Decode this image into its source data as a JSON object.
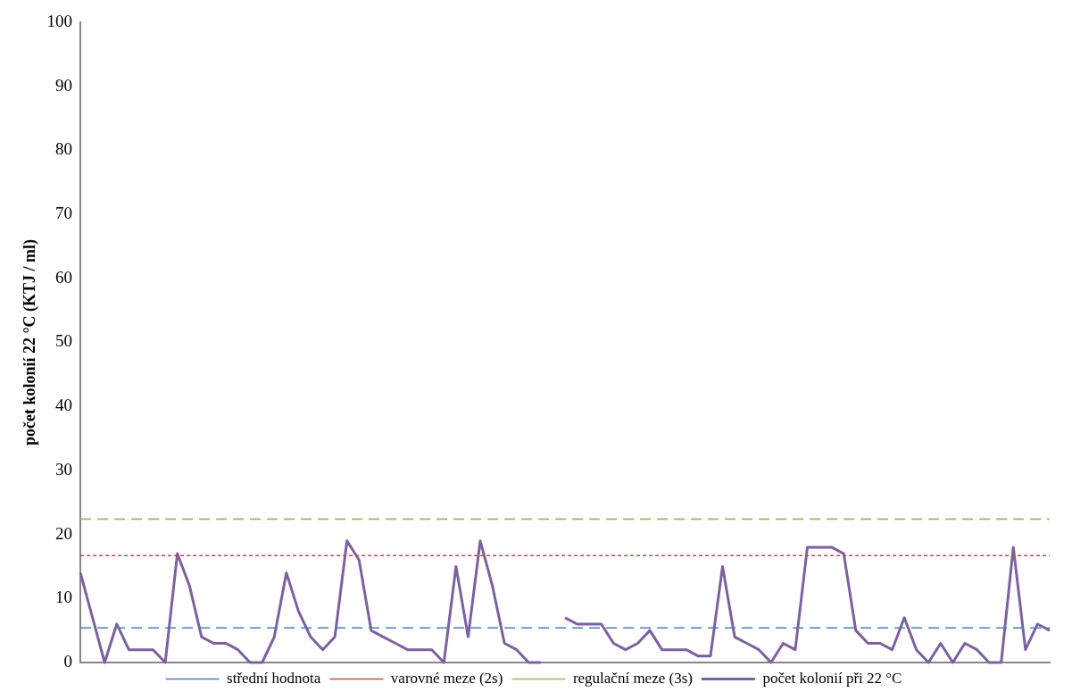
{
  "chart_data": {
    "type": "line",
    "ylabel": "počet kolonií 22 °C (KTJ / ml)",
    "categories": [
      null,
      null,
      null,
      null,
      null,
      null,
      null,
      null,
      null,
      null,
      null,
      null,
      null,
      null,
      null,
      null,
      null,
      null,
      null,
      null,
      null,
      null,
      null,
      null,
      null,
      null,
      null,
      null,
      null,
      null,
      null,
      null,
      null,
      null,
      null,
      null,
      null,
      null,
      null,
      null,
      null,
      null,
      null,
      null,
      null,
      null,
      null,
      null,
      null,
      null,
      null,
      null,
      null,
      null,
      null,
      null,
      null,
      null,
      null,
      null,
      null,
      null,
      null,
      null,
      null,
      null,
      null,
      null,
      null,
      null,
      null,
      null,
      null,
      null,
      null,
      null,
      null,
      null,
      null,
      null,
      null
    ],
    "ylim": [
      0,
      100
    ],
    "yticks": [
      0,
      10,
      20,
      30,
      40,
      50,
      60,
      70,
      80,
      90,
      100
    ],
    "grid": false,
    "legend": "bottom",
    "marker": "none",
    "series": [
      {
        "name": "střední hodnota",
        "color": "#4a7ebb",
        "line_style": "dashed",
        "values": [
          5.4,
          5.4,
          5.4,
          5.4,
          5.4,
          5.4,
          5.4,
          5.4,
          5.4,
          5.4,
          5.4,
          5.4,
          5.4,
          5.4,
          5.4,
          5.4,
          5.4,
          5.4,
          5.4,
          5.4,
          5.4,
          5.4,
          5.4,
          5.4,
          5.4,
          5.4,
          5.4,
          5.4,
          5.4,
          5.4,
          5.4,
          5.4,
          5.4,
          5.4,
          5.4,
          5.4,
          5.4,
          5.4,
          5.4,
          5.4,
          5.4,
          5.4,
          5.4,
          5.4,
          5.4,
          5.4,
          5.4,
          5.4,
          5.4,
          5.4,
          5.4,
          5.4,
          5.4,
          5.4,
          5.4,
          5.4,
          5.4,
          5.4,
          5.4,
          5.4,
          5.4,
          5.4,
          5.4,
          5.4,
          5.4,
          5.4,
          5.4,
          5.4,
          5.4,
          5.4,
          5.4,
          5.4,
          5.4,
          5.4,
          5.4,
          5.4,
          5.4,
          5.4,
          5.4,
          5.4,
          5.4
        ]
      },
      {
        "name": "varovné meze (2s)",
        "color": "#be4b48",
        "line_style": "dotted",
        "values": [
          16.7,
          16.7,
          16.7,
          16.7,
          16.7,
          16.7,
          16.7,
          16.7,
          16.7,
          16.7,
          16.7,
          16.7,
          16.7,
          16.7,
          16.7,
          16.7,
          16.7,
          16.7,
          16.7,
          16.7,
          16.7,
          16.7,
          16.7,
          16.7,
          16.7,
          16.7,
          16.7,
          16.7,
          16.7,
          16.7,
          16.7,
          16.7,
          16.7,
          16.7,
          16.7,
          16.7,
          16.7,
          16.7,
          16.7,
          16.7,
          16.7,
          16.7,
          16.7,
          16.7,
          16.7,
          16.7,
          16.7,
          16.7,
          16.7,
          16.7,
          16.7,
          16.7,
          16.7,
          16.7,
          16.7,
          16.7,
          16.7,
          16.7,
          16.7,
          16.7,
          16.7,
          16.7,
          16.7,
          16.7,
          16.7,
          16.7,
          16.7,
          16.7,
          16.7,
          16.7,
          16.7,
          16.7,
          16.7,
          16.7,
          16.7,
          16.7,
          16.7,
          16.7,
          16.7,
          16.7,
          16.7
        ]
      },
      {
        "name": "regulační meze (3s)",
        "color": "#98b954",
        "line_style": "dashed",
        "values": [
          22.4,
          22.4,
          22.4,
          22.4,
          22.4,
          22.4,
          22.4,
          22.4,
          22.4,
          22.4,
          22.4,
          22.4,
          22.4,
          22.4,
          22.4,
          22.4,
          22.4,
          22.4,
          22.4,
          22.4,
          22.4,
          22.4,
          22.4,
          22.4,
          22.4,
          22.4,
          22.4,
          22.4,
          22.4,
          22.4,
          22.4,
          22.4,
          22.4,
          22.4,
          22.4,
          22.4,
          22.4,
          22.4,
          22.4,
          22.4,
          22.4,
          22.4,
          22.4,
          22.4,
          22.4,
          22.4,
          22.4,
          22.4,
          22.4,
          22.4,
          22.4,
          22.4,
          22.4,
          22.4,
          22.4,
          22.4,
          22.4,
          22.4,
          22.4,
          22.4,
          22.4,
          22.4,
          22.4,
          22.4,
          22.4,
          22.4,
          22.4,
          22.4,
          22.4,
          22.4,
          22.4,
          22.4,
          22.4,
          22.4,
          22.4,
          22.4,
          22.4,
          22.4,
          22.4,
          22.4,
          22.4
        ]
      },
      {
        "name": "počet kolonií při 22 °C",
        "color": "#7d60a0",
        "line_style": "solid",
        "values": [
          14,
          7,
          0,
          6,
          2,
          2,
          2,
          0,
          17,
          12,
          4,
          3,
          3,
          2,
          0,
          0,
          4,
          14,
          8,
          4,
          2,
          4,
          19,
          16,
          5,
          4,
          3,
          2,
          2,
          2,
          0,
          15,
          4,
          19,
          12,
          3,
          2,
          0,
          0,
          null,
          7,
          6,
          6,
          6,
          3,
          2,
          3,
          5,
          2,
          2,
          2,
          1,
          1,
          15,
          4,
          3,
          2,
          0,
          3,
          2,
          18,
          18,
          18,
          17,
          5,
          3,
          3,
          2,
          7,
          2,
          0,
          3,
          0,
          3,
          2,
          0,
          0,
          18,
          2,
          6,
          5
        ]
      }
    ]
  }
}
